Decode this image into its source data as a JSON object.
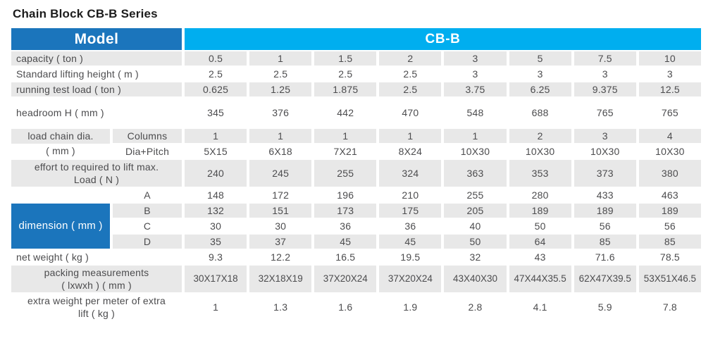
{
  "title": "Chain Block CB-B Series",
  "colors": {
    "header_blue": "#1b75bc",
    "series_cyan": "#00aeef",
    "row_gray": "#e8e8e8",
    "text_gray": "#4c4c4e"
  },
  "table": {
    "header": {
      "model": "Model",
      "series": "CB-B"
    },
    "columns_count": 8,
    "sections": [
      {
        "kind": "row",
        "label": "capacity ( ton )",
        "shade": "gray",
        "values": [
          "0.5",
          "1",
          "1.5",
          "2",
          "3",
          "5",
          "7.5",
          "10"
        ]
      },
      {
        "kind": "row",
        "label": "Standard lifting height ( m )",
        "shade": "white",
        "values": [
          "2.5",
          "2.5",
          "2.5",
          "2.5",
          "3",
          "3",
          "3",
          "3"
        ]
      },
      {
        "kind": "row",
        "label": "running test load ( ton )",
        "shade": "gray",
        "values": [
          "0.625",
          "1.25",
          "1.875",
          "2.5",
          "3.75",
          "6.25",
          "9.375",
          "12.5"
        ]
      },
      {
        "kind": "row",
        "label": "headroom  H ( mm )",
        "shade": "white",
        "tall": true,
        "values": [
          "345",
          "376",
          "442",
          "470",
          "548",
          "688",
          "765",
          "765"
        ]
      },
      {
        "kind": "group",
        "label_style": "split",
        "label_lines": [
          "load chain dia.",
          "( mm )"
        ],
        "rows": [
          {
            "sublabel": "Columns",
            "shade": "gray",
            "values": [
              "1",
              "1",
              "1",
              "1",
              "1",
              "2",
              "3",
              "4"
            ]
          },
          {
            "sublabel": "Dia+Pitch",
            "shade": "white",
            "values": [
              "5X15",
              "6X18",
              "7X21",
              "8X24",
              "10X30",
              "10X30",
              "10X30",
              "10X30"
            ]
          }
        ]
      },
      {
        "kind": "row",
        "label_lines": [
          "effort to required to lift max.",
          "Load ( N )"
        ],
        "shade": "gray",
        "values": [
          "240",
          "245",
          "255",
          "324",
          "363",
          "353",
          "373",
          "380"
        ]
      },
      {
        "kind": "group",
        "label_style": "blue",
        "label_lines": [
          "dimension ( mm )"
        ],
        "rows": [
          {
            "sublabel": "A",
            "shade": "white",
            "values": [
              "148",
              "172",
              "196",
              "210",
              "255",
              "280",
              "433",
              "463"
            ]
          },
          {
            "sublabel": "B",
            "shade": "gray",
            "values": [
              "132",
              "151",
              "173",
              "175",
              "205",
              "189",
              "189",
              "189"
            ]
          },
          {
            "sublabel": "C",
            "shade": "white",
            "values": [
              "30",
              "30",
              "36",
              "36",
              "40",
              "50",
              "56",
              "56"
            ]
          },
          {
            "sublabel": "D",
            "shade": "gray",
            "values": [
              "35",
              "37",
              "45",
              "45",
              "50",
              "64",
              "85",
              "85"
            ]
          }
        ]
      },
      {
        "kind": "row",
        "label": "net weight ( kg )",
        "shade": "white",
        "values": [
          "9.3",
          "12.2",
          "16.5",
          "19.5",
          "32",
          "43",
          "71.6",
          "78.5"
        ]
      },
      {
        "kind": "row",
        "label_lines": [
          "packing measurements",
          "( lxwxh )  ( mm )"
        ],
        "shade": "gray",
        "compact": true,
        "values": [
          "30X17X18",
          "32X18X19",
          "37X20X24",
          "37X20X24",
          "43X40X30",
          "47X44X35.5",
          "62X47X39.5",
          "53X51X46.5"
        ]
      },
      {
        "kind": "row",
        "label_lines": [
          "extra weight per meter of extra",
          "lift ( kg )"
        ],
        "shade": "white",
        "values": [
          "1",
          "1.3",
          "1.6",
          "1.9",
          "2.8",
          "4.1",
          "5.9",
          "7.8"
        ]
      }
    ]
  }
}
